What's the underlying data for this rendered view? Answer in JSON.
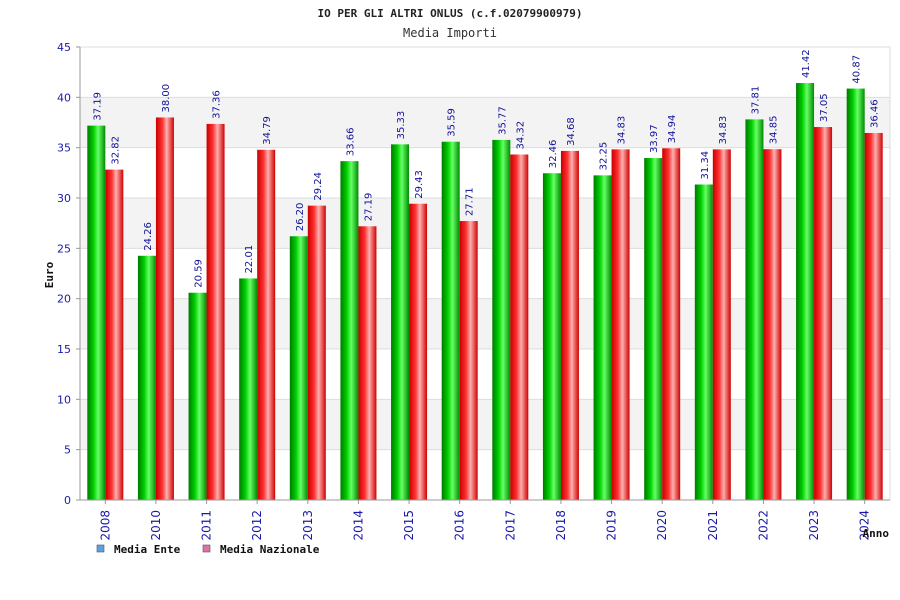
{
  "chart_data": {
    "type": "bar",
    "title": "IO PER GLI ALTRI ONLUS (c.f.02079900979)",
    "subtitle": "Media Importi",
    "xlabel": "Anno",
    "ylabel": "Euro",
    "ylim": [
      0,
      45
    ],
    "yticks": [
      0,
      5,
      10,
      15,
      20,
      25,
      30,
      35,
      40,
      45
    ],
    "categories": [
      "2008",
      "2010",
      "2011",
      "2012",
      "2013",
      "2014",
      "2015",
      "2016",
      "2017",
      "2018",
      "2019",
      "2020",
      "2021",
      "2022",
      "2023",
      "2024"
    ],
    "series": [
      {
        "name": "Media Ente",
        "color": "#00bb00",
        "legend_color": "#5aa0e6",
        "values": [
          37.19,
          24.26,
          20.59,
          22.01,
          26.2,
          33.66,
          35.33,
          35.59,
          35.77,
          32.46,
          32.25,
          33.97,
          31.34,
          37.81,
          41.42,
          40.87
        ],
        "labels": [
          "37.19",
          "24.26",
          "20.59",
          "22.01",
          "26.20",
          "33.66",
          "35.33",
          "35.59",
          "35.77",
          "32.46",
          "32.25",
          "33.97",
          "31.34",
          "37.81",
          "41.42",
          "40.87"
        ]
      },
      {
        "name": "Media Nazionale",
        "color": "#ee1111",
        "legend_color": "#e070a8",
        "values": [
          32.82,
          38.0,
          37.36,
          34.79,
          29.24,
          27.19,
          29.43,
          27.71,
          34.32,
          34.68,
          34.83,
          34.94,
          34.83,
          34.85,
          37.05,
          36.46
        ],
        "labels": [
          "32.82",
          "38.00",
          "37.36",
          "34.79",
          "29.24",
          "27.19",
          "29.43",
          "27.71",
          "34.32",
          "34.68",
          "34.83",
          "34.94",
          "34.83",
          "34.85",
          "37.05",
          "36.46"
        ]
      }
    ],
    "grid": true,
    "legend_position": "bottom-left"
  }
}
